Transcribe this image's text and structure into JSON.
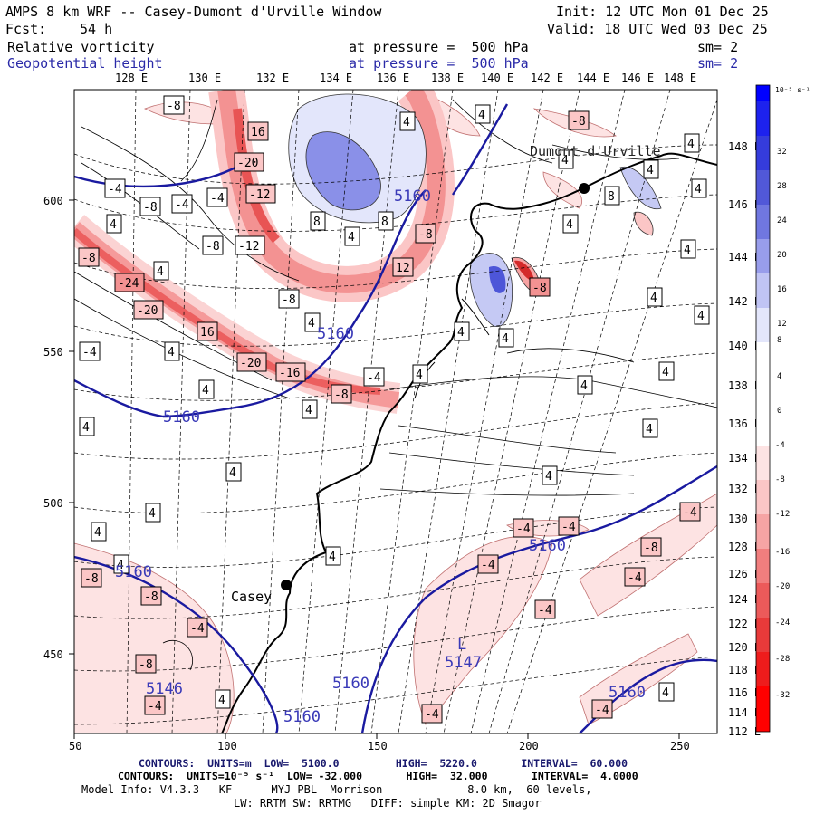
{
  "header": {
    "title": "AMPS 8 km WRF -- Casey-Dumont d'Urville Window",
    "init": "Init: 12 UTC Mon 01 Dec 25",
    "fcst_label": "Fcst:",
    "fcst_value": "54 h",
    "valid": "Valid: 18 UTC Wed 03 Dec 25",
    "field1_name": "Relative vorticity",
    "field1_level": "at pressure =  500 hPa",
    "field1_sm": "sm= 2",
    "field2_name": "Geopotential height",
    "field2_level": "at pressure =  500 hPa",
    "field2_sm": "sm= 2"
  },
  "map": {
    "top_lon_labels": [
      "128 E",
      "130 E",
      "132 E",
      "134 E",
      "136 E",
      "138 E",
      "140 E",
      "142 E",
      "144 E",
      "146 E",
      "148 E"
    ],
    "right_lon_labels": [
      "148 E",
      "146 E",
      "144 E",
      "142 E",
      "140 E",
      "138 E",
      "136 E",
      "134 E",
      "132 E",
      "130 E",
      "128 E",
      "126 E",
      "124 E",
      "122 E",
      "120 E",
      "118 E",
      "116 E",
      "114 E",
      "112 E"
    ],
    "x_ticks": [
      "50",
      "100",
      "150",
      "200",
      "250"
    ],
    "y_ticks": [
      "600",
      "550",
      "500",
      "450"
    ],
    "stations": [
      {
        "name": "Casey"
      },
      {
        "name": "Dumont d'Urville"
      }
    ],
    "height_labels": [
      "5160",
      "5160",
      "5160",
      "5160",
      "5160",
      "5160",
      "5160",
      "5146",
      "5147"
    ],
    "low_marker": "L",
    "colorbar": {
      "unit": "10⁻⁵ s⁻¹",
      "levels": [
        "32",
        "28",
        "24",
        "20",
        "16",
        "12",
        "8",
        "4",
        "0",
        "-4",
        "-8",
        "-12",
        "-16",
        "-20",
        "-24",
        "-28",
        "-32"
      ]
    }
  },
  "footer": {
    "line1": "CONTOURS:  UNITS=m  LOW=  5100.0         HIGH=  5220.0       INTERVAL=  60.000",
    "line2": "CONTOURS:  UNITS=10⁻⁵ s⁻¹  LOW= -32.000       HIGH=  32.000       INTERVAL=  4.0000",
    "line3": "Model Info: V4.3.3   KF      MYJ PBL  Morrison             8.0 km,  60 levels,",
    "line4": "LW: RRTM SW: RRTMG   DIFF: simple KM: 2D Smagor"
  }
}
